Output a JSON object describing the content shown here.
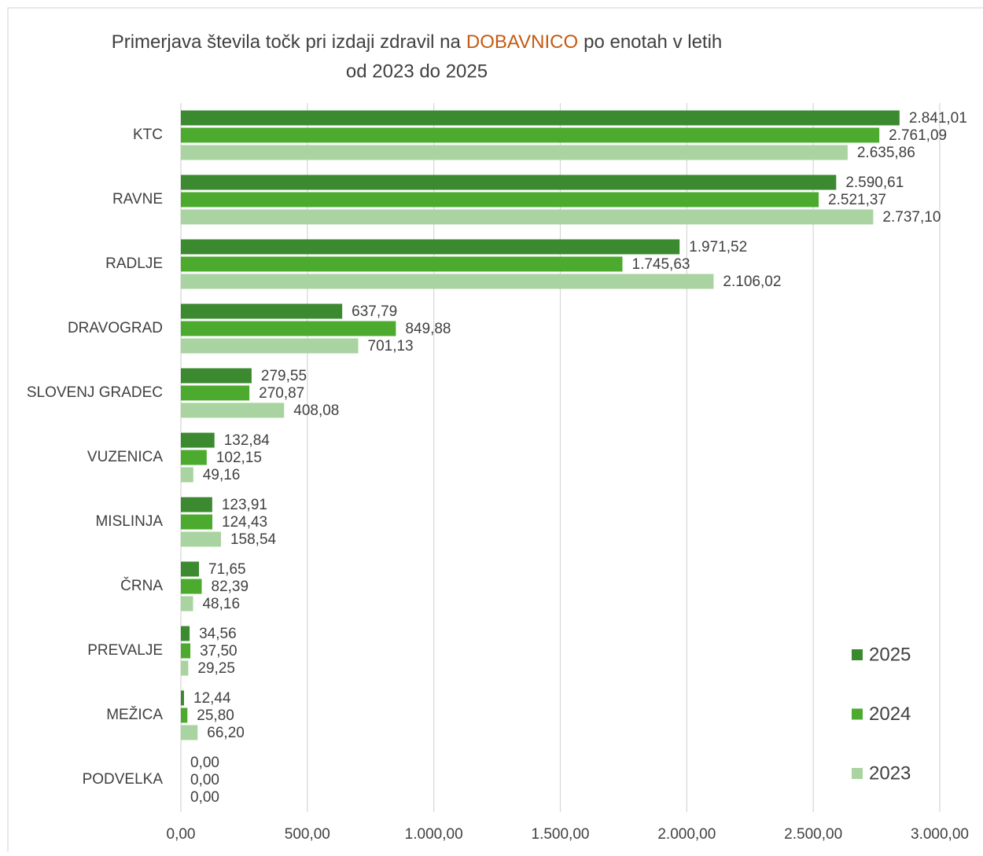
{
  "chart_data": {
    "type": "hbar",
    "title": {
      "start": "Primerjava števila točk pri izdaji zdravil na",
      "highlight": "DOBAVNICO",
      "end": "po enotah v letih",
      "second_line": "od 2023 do 2025"
    },
    "categories": [
      "KTC",
      "RAVNE",
      "RADLJE",
      "DRAVOGRAD",
      "SLOVENJ GRADEC",
      "VUZENICA",
      "MISLINJA",
      "ČRNA",
      "PREVALJE",
      "MEŽICA",
      "PODVELKA"
    ],
    "series": [
      {
        "name": "2025",
        "color": "#3b8a2f",
        "values": [
          2841.01,
          2590.61,
          1971.52,
          637.79,
          279.55,
          132.84,
          123.91,
          71.65,
          34.56,
          12.44,
          0
        ],
        "value_labels": [
          "2.841,01",
          "2.590,61",
          "1.971,52",
          "637,79",
          "279,55",
          "132,84",
          "123,91",
          "71,65",
          "34,56",
          "12,44",
          "0,00"
        ]
      },
      {
        "name": "2024",
        "color": "#4caa2f",
        "values": [
          2761.09,
          2521.37,
          1745.63,
          849.88,
          270.87,
          102.15,
          124.43,
          82.39,
          37.5,
          25.8,
          0
        ],
        "value_labels": [
          "2.761,09",
          "2.521,37",
          "1.745,63",
          "849,88",
          "270,87",
          "102,15",
          "124,43",
          "82,39",
          "37,50",
          "25,80",
          "0,00"
        ]
      },
      {
        "name": "2023",
        "color": "#a9d3a0",
        "values": [
          2635.86,
          2737.1,
          2106.02,
          701.13,
          408.08,
          49.16,
          158.54,
          48.16,
          29.25,
          66.2,
          0
        ],
        "value_labels": [
          "2.635,86",
          "2.737,10",
          "2.106,02",
          "701,13",
          "408,08",
          "49,16",
          "158,54",
          "48,16",
          "29,25",
          "66,20",
          "0,00"
        ]
      }
    ],
    "xlim": [
      0,
      3000
    ],
    "xticks": [
      {
        "value": 0,
        "label": "0,00"
      },
      {
        "value": 500,
        "label": "500,00"
      },
      {
        "value": 1000,
        "label": "1.000,00"
      },
      {
        "value": 1500,
        "label": "1.500,00"
      },
      {
        "value": 2000,
        "label": "2.000,00"
      },
      {
        "value": 2500,
        "label": "2.500,00"
      },
      {
        "value": 3000,
        "label": "3.000,00"
      }
    ],
    "grid": true,
    "legend": "right"
  }
}
